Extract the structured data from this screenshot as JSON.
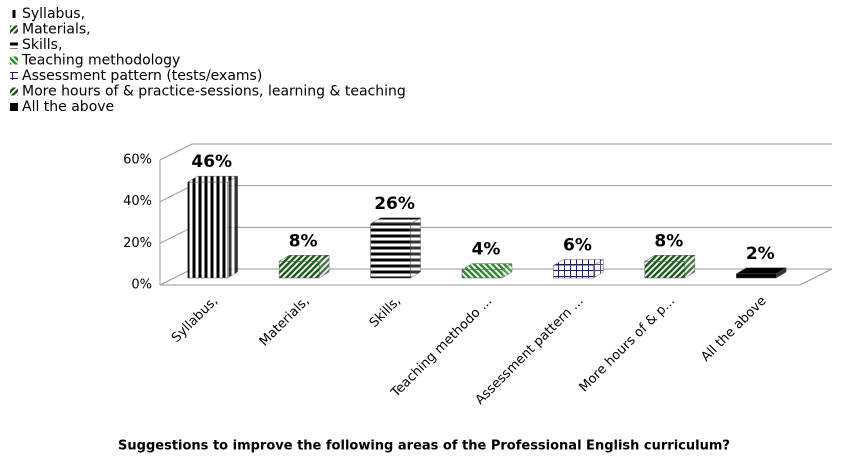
{
  "chart_data": {
    "type": "bar3d",
    "title": "Suggestions to improve the following areas of the Professional English curriculum?",
    "legend": [
      "Syllabus,",
      "Materials,",
      "Skills,",
      "Teaching methodology",
      "Assessment pattern (tests/exams)",
      "More hours of & practice-sessions, learning & teaching",
      "All the above"
    ],
    "categories": [
      "Syllabus,",
      "Materials,",
      "Skills,",
      "Teaching methodo ...",
      "Assessment pattern ...",
      "More hours of & p...",
      "All the above"
    ],
    "values": [
      46,
      8,
      26,
      4,
      6,
      8,
      2
    ],
    "value_labels": [
      "46%",
      "8%",
      "26%",
      "4%",
      "6%",
      "8%",
      "2%"
    ],
    "patterns": [
      "vertical",
      "diagonal",
      "horizontal",
      "diagonal-reverse",
      "grid",
      "diagonal",
      "solid"
    ],
    "colors": [
      "#000000",
      "#1e5c1e",
      "#000000",
      "#2e8b2e",
      "#1a1a8c",
      "#1e5c1e",
      "#000000"
    ],
    "ylim": [
      0,
      60
    ],
    "yticks": [
      {
        "value": 0,
        "label": "0%"
      },
      {
        "value": 20,
        "label": "20%"
      },
      {
        "value": 40,
        "label": "40%"
      },
      {
        "value": 60,
        "label": "60%"
      }
    ],
    "grid": true
  }
}
